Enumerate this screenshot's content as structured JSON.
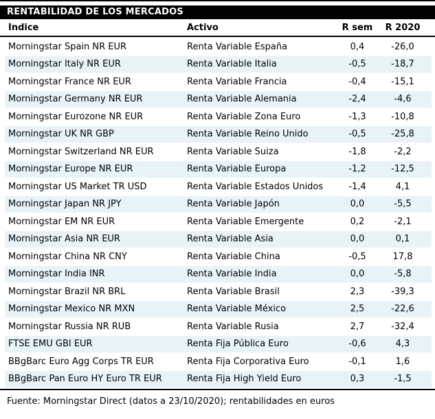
{
  "colors": {
    "stripe": "#e8f3f8",
    "title_bar_bg": "#000000",
    "title_bar_text": "#ffffff",
    "rule": "#000000"
  },
  "chart_data": {
    "type": "table",
    "title": "RENTABILIDAD DE LOS MERCADOS",
    "columns": [
      "Índice",
      "Activo",
      "R sem",
      "R 2020"
    ],
    "rows": [
      [
        "Morningstar Spain NR EUR",
        "Renta Variable España",
        "0,4",
        "-26,0"
      ],
      [
        "Morningstar Italy NR EUR",
        "Renta Variable Italia",
        "-0,5",
        "-18,7"
      ],
      [
        "Morningstar France NR EUR",
        "Renta Variable Francia",
        "-0,4",
        "-15,1"
      ],
      [
        "Morningstar Germany NR EUR",
        "Renta Variable Alemania",
        "-2,4",
        "-4,6"
      ],
      [
        "Morningstar Eurozone NR EUR",
        "Renta Variable Zona Euro",
        "-1,3",
        "-10,8"
      ],
      [
        "Morningstar UK NR GBP",
        "Renta Variable Reino Unido",
        "-0,5",
        "-25,8"
      ],
      [
        "Morningstar Switzerland NR EUR",
        "Renta Variable Suiza",
        "-1,8",
        "-2,2"
      ],
      [
        "Morningstar Europe NR EUR",
        "Renta Variable Europa",
        "-1,2",
        "-12,5"
      ],
      [
        "Morningstar US Market TR USD",
        "Renta Variable Estados Unidos",
        "-1,4",
        "4,1"
      ],
      [
        "Morningstar Japan NR JPY",
        "Renta Variable Japón",
        "0,0",
        "-5,5"
      ],
      [
        "Morningstar EM NR EUR",
        "Renta Variable Emergente",
        "0,2",
        "-2,1"
      ],
      [
        "Morningstar Asia NR EUR",
        "Renta Variable Asia",
        "0,0",
        "0,1"
      ],
      [
        "Morningstar China NR CNY",
        "Renta Variable China",
        "-0,5",
        "17,8"
      ],
      [
        "Morningstar India INR",
        "Renta Variable India",
        "0,0",
        "-5,8"
      ],
      [
        "Morningstar Brazil NR BRL",
        "Renta Variable Brasil",
        "2,3",
        "-39,3"
      ],
      [
        "Morningstar Mexico NR MXN",
        "Renta Variable México",
        "2,5",
        "-22,6"
      ],
      [
        "Morningstar Russia NR RUB",
        "Renta Variable Rusia",
        "2,7",
        "-32,4"
      ],
      [
        "FTSE EMU GBI EUR",
        "Renta Fija Pública Euro",
        "-0,6",
        "4,3"
      ],
      [
        "BBgBarc Euro Agg Corps TR EUR",
        "Renta Fija Corporativa Euro",
        "-0,1",
        "1,6"
      ],
      [
        "BBgBarc Pan Euro HY Euro TR EUR",
        "Renta Fija High Yield Euro",
        "0,3",
        "-1,5"
      ]
    ],
    "source": "Fuente: Morningstar Direct (datos a 23/10/2020); rentabilidades en euros",
    "layout": {
      "striped_rows": "even",
      "numeric_alignment": "center",
      "decimal_separator": ","
    }
  }
}
